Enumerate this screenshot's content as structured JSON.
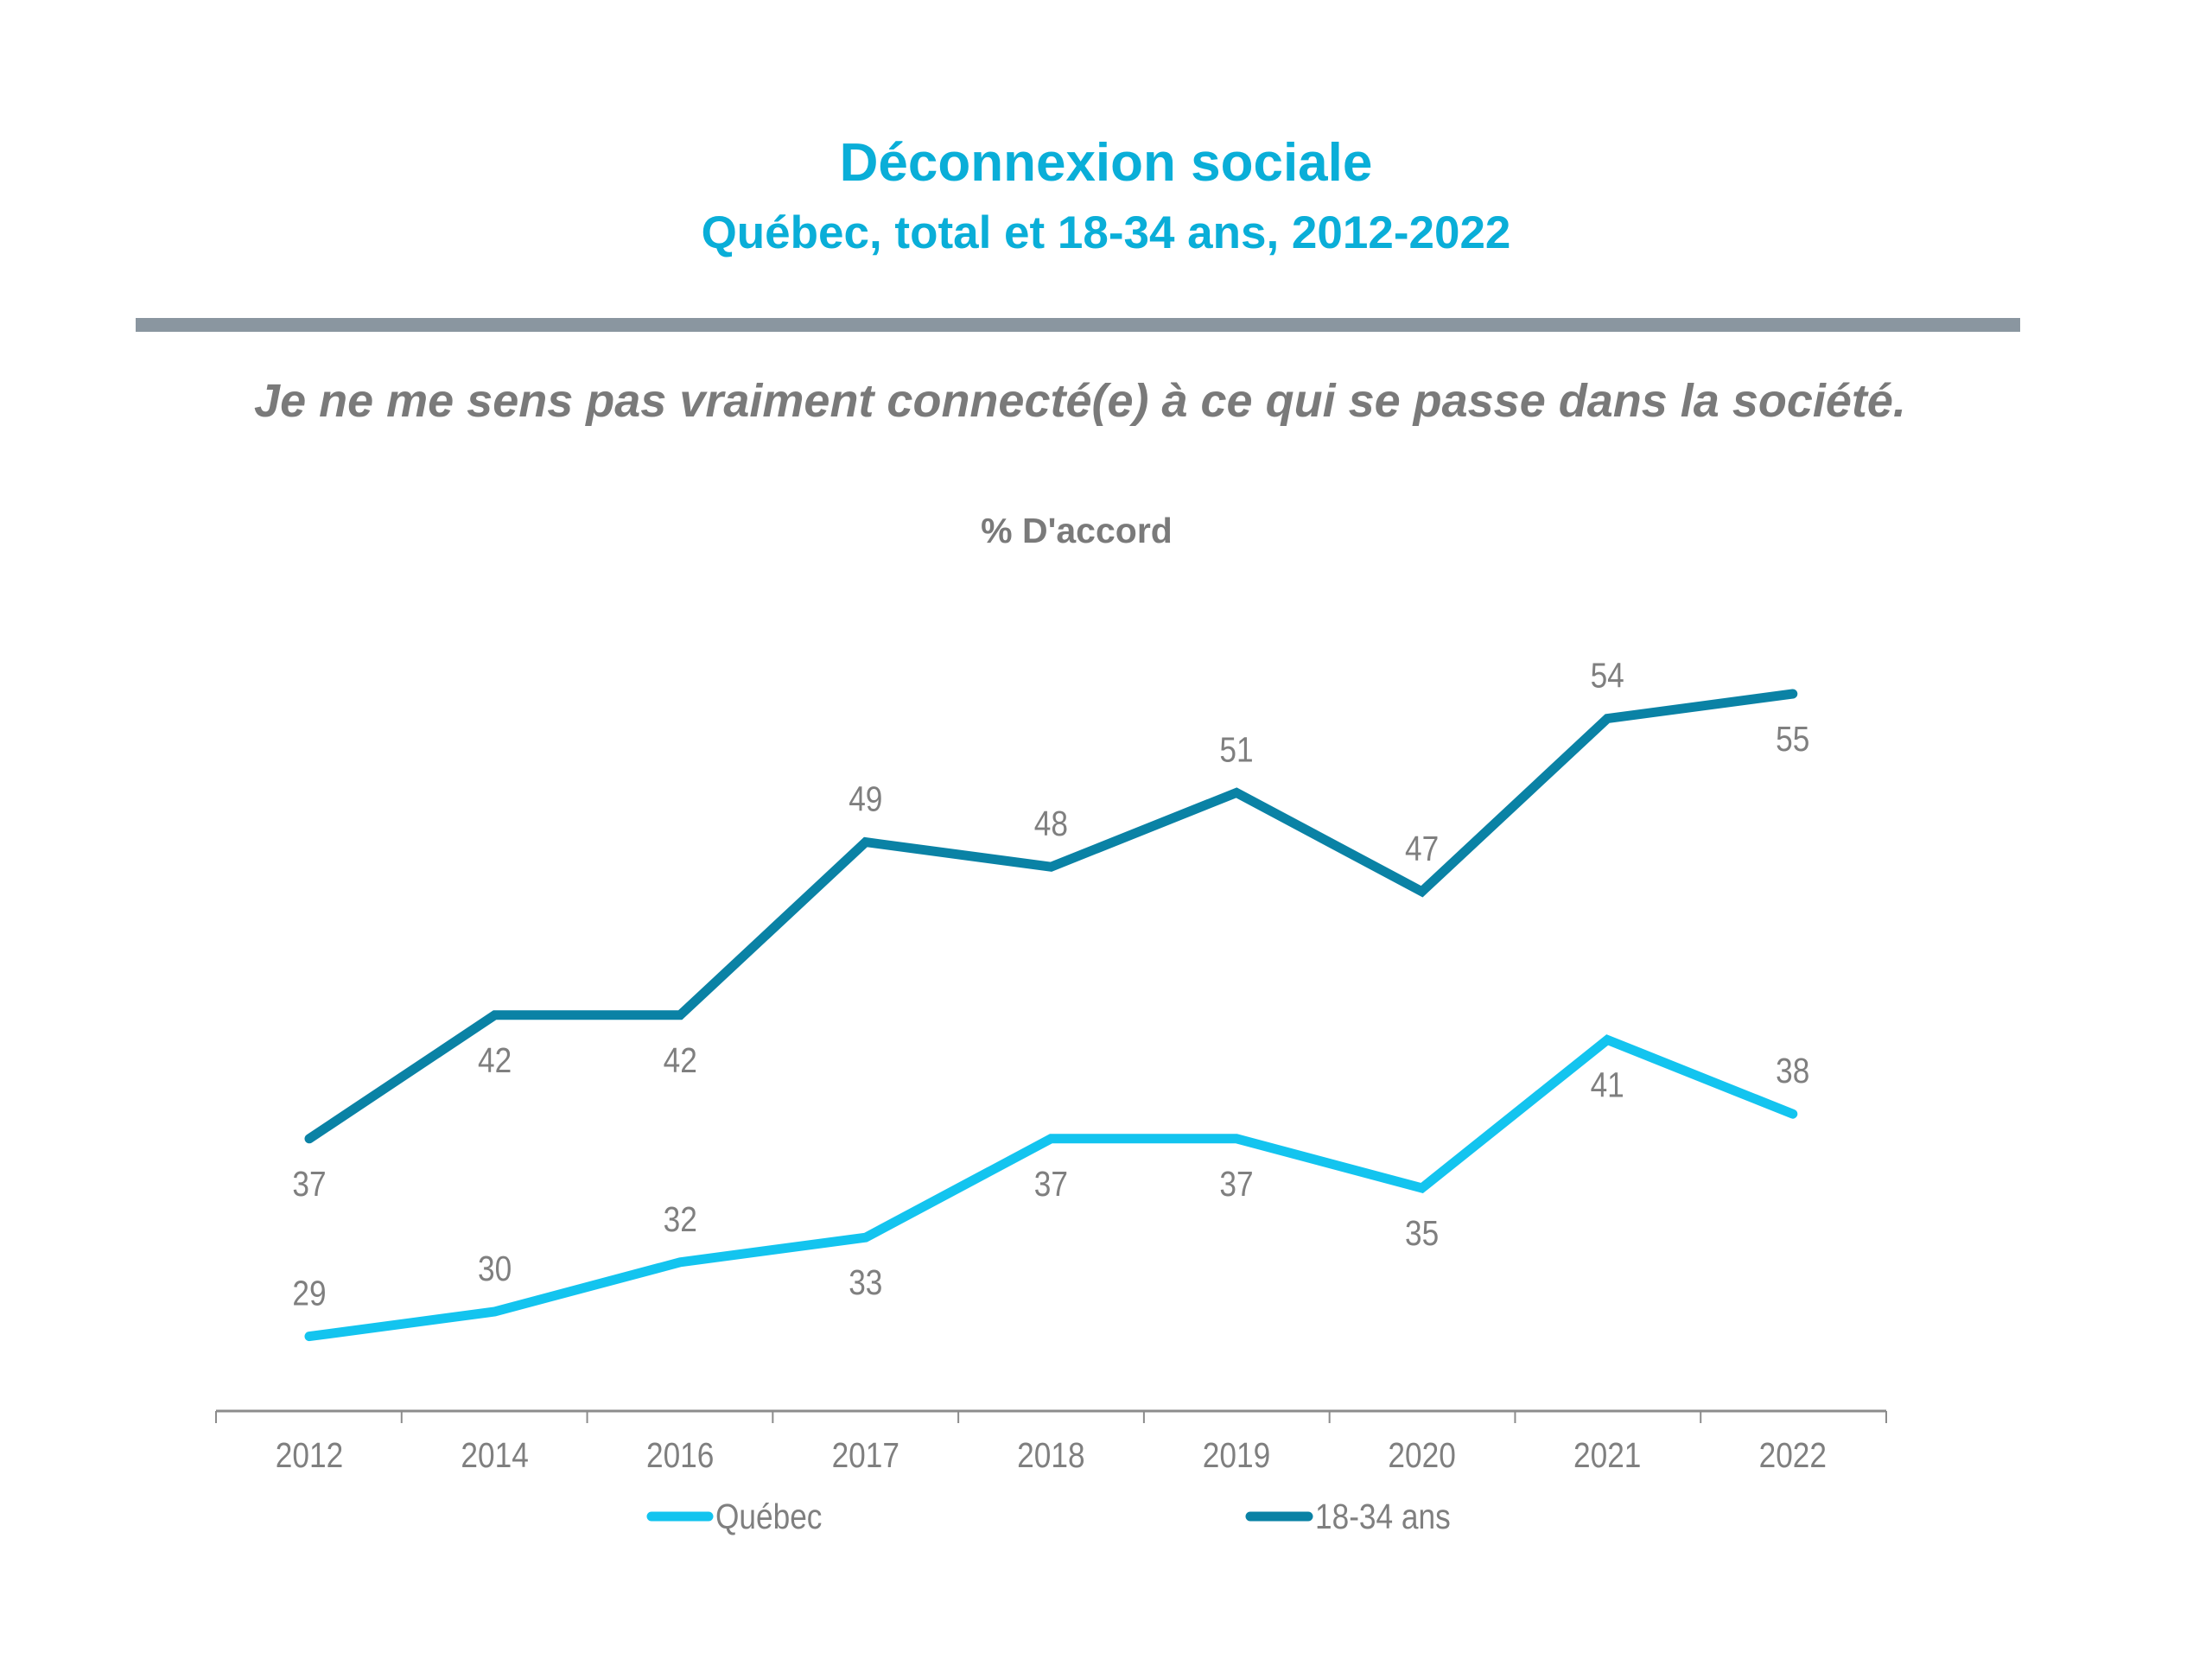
{
  "header": {
    "title": "Déconnexion sociale",
    "subtitle": "Québec, total et 18-34 ans, 2012-2022",
    "question": "Je ne me sens pas vraiment connecté(e) à ce qui se passe dans la société."
  },
  "colors": {
    "title": "#0aaed8",
    "rule": "#8a96a0",
    "text_gray": "#7a7a7a",
    "quebec": "#13c4ef",
    "age_18_34": "#0a82a5"
  },
  "chart_data": {
    "type": "line",
    "title": "Déconnexion sociale",
    "subtitle": "Québec, total et 18-34 ans, 2012-2022",
    "ylabel": "% D'accord",
    "xlabel": "",
    "categories": [
      "2012",
      "2014",
      "2016",
      "2017",
      "2018",
      "2019",
      "2020",
      "2021",
      "2022"
    ],
    "series": [
      {
        "name": "Québec",
        "color": "#13c4ef",
        "values": [
          29,
          30,
          32,
          33,
          37,
          37,
          35,
          41,
          38
        ],
        "label_pos": [
          "above",
          "above",
          "above",
          "below",
          "below",
          "below",
          "below",
          "below",
          "above"
        ]
      },
      {
        "name": "18-34 ans",
        "color": "#0a82a5",
        "values": [
          37,
          42,
          42,
          49,
          48,
          51,
          47,
          54,
          55
        ],
        "label_pos": [
          "below",
          "below",
          "below",
          "above",
          "above",
          "above",
          "above",
          "above",
          "below"
        ]
      }
    ],
    "grid": false,
    "y_axis_visible": false,
    "legend": {
      "placement": "bottom",
      "entries": [
        "Québec",
        "18-34 ans"
      ]
    }
  }
}
